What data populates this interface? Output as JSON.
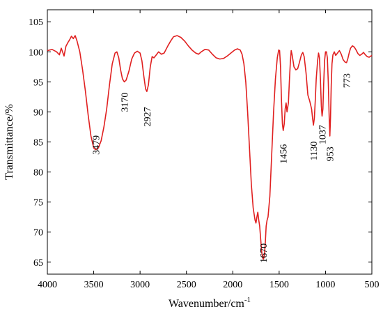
{
  "chart_data": {
    "type": "line",
    "title": "",
    "xlabel": "Wavenumber/cm",
    "xlabel_superscript": "-1",
    "ylabel": "Transmittance/%",
    "xlim": [
      4000,
      500
    ],
    "ylim": [
      63,
      107
    ],
    "x_reversed": true,
    "grid": false,
    "legend": "none",
    "x_ticks": [
      4000,
      3500,
      3000,
      2500,
      2000,
      1500,
      1000,
      500
    ],
    "y_ticks": [
      65,
      70,
      75,
      80,
      85,
      90,
      95,
      100,
      105
    ],
    "series": [
      {
        "color": "#e02020",
        "points": [
          [
            4000,
            100.2
          ],
          [
            3950,
            100.4
          ],
          [
            3900,
            100.0
          ],
          [
            3870,
            99.5
          ],
          [
            3850,
            100.6
          ],
          [
            3820,
            99.3
          ],
          [
            3800,
            100.9
          ],
          [
            3780,
            101.5
          ],
          [
            3760,
            102.0
          ],
          [
            3740,
            102.6
          ],
          [
            3720,
            102.2
          ],
          [
            3700,
            102.7
          ],
          [
            3680,
            101.8
          ],
          [
            3650,
            100.0
          ],
          [
            3620,
            97.0
          ],
          [
            3590,
            93.5
          ],
          [
            3560,
            89.5
          ],
          [
            3530,
            86.0
          ],
          [
            3500,
            84.0
          ],
          [
            3479,
            83.7
          ],
          [
            3450,
            84.0
          ],
          [
            3420,
            85.2
          ],
          [
            3390,
            87.5
          ],
          [
            3360,
            90.5
          ],
          [
            3330,
            94.5
          ],
          [
            3300,
            98.0
          ],
          [
            3270,
            99.8
          ],
          [
            3250,
            100.0
          ],
          [
            3230,
            99.0
          ],
          [
            3210,
            97.0
          ],
          [
            3190,
            95.5
          ],
          [
            3170,
            95.0
          ],
          [
            3150,
            95.3
          ],
          [
            3120,
            96.8
          ],
          [
            3090,
            98.8
          ],
          [
            3060,
            99.8
          ],
          [
            3030,
            100.1
          ],
          [
            3000,
            99.8
          ],
          [
            2980,
            98.5
          ],
          [
            2960,
            96.0
          ],
          [
            2940,
            93.8
          ],
          [
            2927,
            93.4
          ],
          [
            2910,
            94.5
          ],
          [
            2890,
            97.5
          ],
          [
            2870,
            99.2
          ],
          [
            2850,
            99.0
          ],
          [
            2830,
            99.4
          ],
          [
            2800,
            100.0
          ],
          [
            2770,
            99.6
          ],
          [
            2740,
            99.8
          ],
          [
            2700,
            101.0
          ],
          [
            2670,
            101.8
          ],
          [
            2640,
            102.5
          ],
          [
            2600,
            102.7
          ],
          [
            2560,
            102.4
          ],
          [
            2520,
            101.8
          ],
          [
            2480,
            101.0
          ],
          [
            2440,
            100.3
          ],
          [
            2400,
            99.8
          ],
          [
            2370,
            99.6
          ],
          [
            2340,
            100.0
          ],
          [
            2300,
            100.4
          ],
          [
            2260,
            100.3
          ],
          [
            2220,
            99.6
          ],
          [
            2180,
            99.0
          ],
          [
            2140,
            98.8
          ],
          [
            2100,
            98.9
          ],
          [
            2060,
            99.3
          ],
          [
            2020,
            99.8
          ],
          [
            1980,
            100.3
          ],
          [
            1950,
            100.5
          ],
          [
            1920,
            100.3
          ],
          [
            1900,
            99.6
          ],
          [
            1880,
            98.0
          ],
          [
            1860,
            95.0
          ],
          [
            1840,
            90.0
          ],
          [
            1820,
            84.0
          ],
          [
            1800,
            78.0
          ],
          [
            1780,
            74.0
          ],
          [
            1760,
            72.0
          ],
          [
            1750,
            71.5
          ],
          [
            1740,
            72.5
          ],
          [
            1730,
            73.3
          ],
          [
            1720,
            72.0
          ],
          [
            1710,
            71.0
          ],
          [
            1700,
            69.0
          ],
          [
            1690,
            67.0
          ],
          [
            1680,
            65.8
          ],
          [
            1670,
            65.5
          ],
          [
            1660,
            66.0
          ],
          [
            1650,
            68.0
          ],
          [
            1640,
            71.0
          ],
          [
            1630,
            72.0
          ],
          [
            1620,
            72.5
          ],
          [
            1600,
            76.0
          ],
          [
            1580,
            83.0
          ],
          [
            1560,
            90.0
          ],
          [
            1540,
            95.5
          ],
          [
            1520,
            99.0
          ],
          [
            1505,
            100.3
          ],
          [
            1495,
            100.2
          ],
          [
            1485,
            97.5
          ],
          [
            1475,
            92.0
          ],
          [
            1465,
            88.0
          ],
          [
            1456,
            86.9
          ],
          [
            1445,
            88.0
          ],
          [
            1435,
            90.5
          ],
          [
            1425,
            91.5
          ],
          [
            1415,
            90.0
          ],
          [
            1400,
            91.5
          ],
          [
            1390,
            95.0
          ],
          [
            1380,
            98.0
          ],
          [
            1370,
            100.2
          ],
          [
            1360,
            99.5
          ],
          [
            1340,
            97.5
          ],
          [
            1320,
            97.0
          ],
          [
            1300,
            97.2
          ],
          [
            1280,
            98.3
          ],
          [
            1260,
            99.5
          ],
          [
            1245,
            99.9
          ],
          [
            1230,
            99.2
          ],
          [
            1210,
            96.5
          ],
          [
            1190,
            92.8
          ],
          [
            1170,
            91.8
          ],
          [
            1150,
            90.5
          ],
          [
            1140,
            89.0
          ],
          [
            1130,
            87.8
          ],
          [
            1120,
            89.0
          ],
          [
            1110,
            92.0
          ],
          [
            1100,
            95.5
          ],
          [
            1085,
            98.5
          ],
          [
            1075,
            99.8
          ],
          [
            1065,
            99.0
          ],
          [
            1055,
            95.5
          ],
          [
            1045,
            91.0
          ],
          [
            1037,
            89.3
          ],
          [
            1028,
            90.5
          ],
          [
            1020,
            94.5
          ],
          [
            1010,
            98.5
          ],
          [
            1000,
            100.0
          ],
          [
            990,
            100.0
          ],
          [
            980,
            99.0
          ],
          [
            970,
            95.0
          ],
          [
            960,
            89.0
          ],
          [
            953,
            86.0
          ],
          [
            946,
            89.0
          ],
          [
            938,
            94.5
          ],
          [
            930,
            98.0
          ],
          [
            920,
            99.5
          ],
          [
            905,
            100.0
          ],
          [
            890,
            99.4
          ],
          [
            870,
            99.8
          ],
          [
            850,
            100.2
          ],
          [
            830,
            99.6
          ],
          [
            810,
            98.7
          ],
          [
            790,
            98.3
          ],
          [
            773,
            98.2
          ],
          [
            760,
            98.8
          ],
          [
            745,
            99.8
          ],
          [
            730,
            100.6
          ],
          [
            710,
            101.0
          ],
          [
            690,
            100.8
          ],
          [
            670,
            100.3
          ],
          [
            650,
            99.7
          ],
          [
            630,
            99.4
          ],
          [
            610,
            99.6
          ],
          [
            590,
            99.9
          ],
          [
            570,
            99.5
          ],
          [
            550,
            99.2
          ],
          [
            530,
            99.1
          ],
          [
            510,
            99.3
          ],
          [
            500,
            99.4
          ]
        ]
      }
    ],
    "annotations": [
      {
        "text": "3479",
        "x": 3479,
        "y": 84.5
      },
      {
        "text": "3170",
        "x": 3170,
        "y": 91.6
      },
      {
        "text": "2927",
        "x": 2927,
        "y": 89.2
      },
      {
        "text": "1670",
        "x": 1670,
        "y": 66.5
      },
      {
        "text": "1456",
        "x": 1456,
        "y": 83.0
      },
      {
        "text": "1130",
        "x": 1130,
        "y": 83.5
      },
      {
        "text": "1037",
        "x": 1037,
        "y": 86.2
      },
      {
        "text": "953",
        "x": 953,
        "y": 83.0
      },
      {
        "text": "773",
        "x": 773,
        "y": 95.2
      }
    ]
  }
}
